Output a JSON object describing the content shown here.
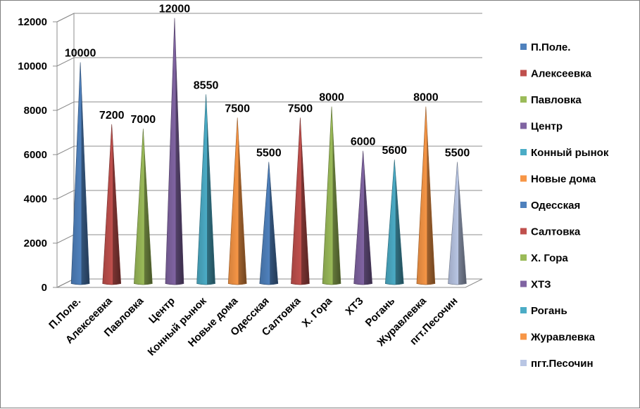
{
  "chart_data": {
    "type": "bar",
    "bar_shape": "3d-cone",
    "categories": [
      "П.Поле.",
      "Алексеевка",
      "Павловка",
      "Центр",
      "Конный рынок",
      "Новые дома",
      "Одесская",
      "Салтовка",
      "Х. Гора",
      "ХТЗ",
      "Рогань",
      "Журавлевка",
      "пгт.Песочин"
    ],
    "values": [
      10000,
      7200,
      7000,
      12000,
      8550,
      7500,
      5500,
      7500,
      8000,
      6000,
      5600,
      8000,
      5500
    ],
    "data_labels": [
      "10000",
      "7200",
      "7000",
      "12000",
      "8550",
      "7500",
      "5500",
      "7500",
      "8000",
      "6000",
      "5600",
      "8000",
      "5500"
    ],
    "colors": [
      "#4F81BD",
      "#C0504D",
      "#9BBB59",
      "#8064A2",
      "#4BACC6",
      "#F79646",
      "#4F81BD",
      "#C0504D",
      "#9BBB59",
      "#8064A2",
      "#4BACC6",
      "#F79646",
      "#B9C6E4"
    ],
    "y_ticks": [
      "0",
      "2000",
      "4000",
      "6000",
      "8000",
      "10000",
      "12000"
    ],
    "ylim": [
      0,
      12000
    ],
    "grid": true,
    "legend_position": "right",
    "title": "",
    "xlabel": "",
    "ylabel": ""
  }
}
